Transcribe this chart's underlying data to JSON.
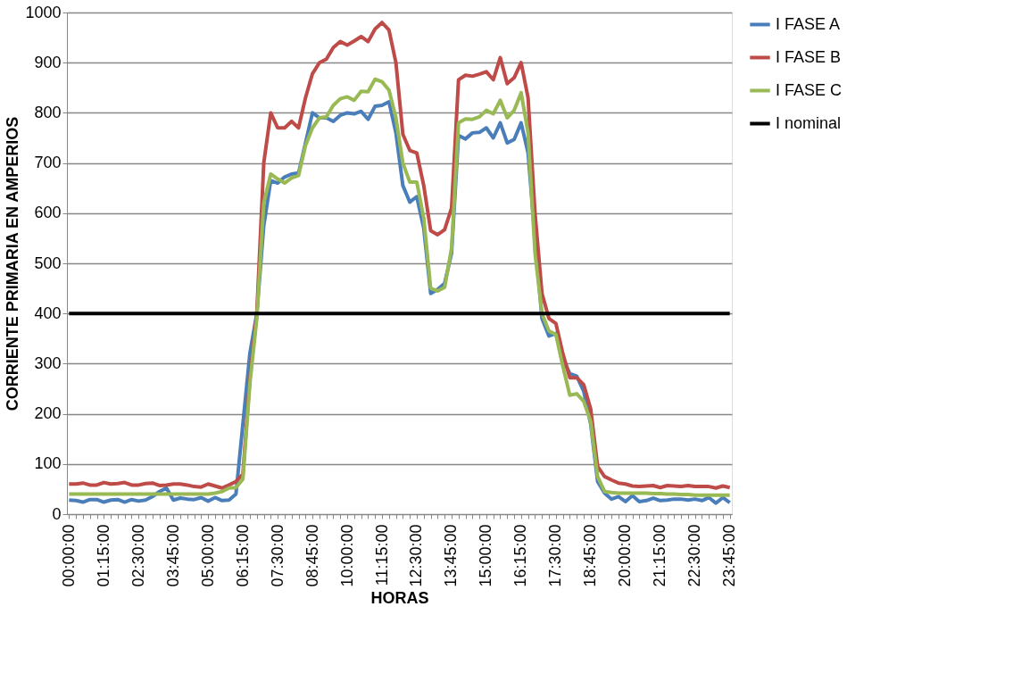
{
  "chart_data": {
    "type": "line",
    "xlabel": "HORAS",
    "ylabel": "CORRIENTE PRIMARIA EN AMPERIOS",
    "categories": [
      "00:00:00",
      null,
      null,
      null,
      null,
      "01:15:00",
      null,
      null,
      null,
      null,
      "02:30:00",
      null,
      null,
      null,
      null,
      "03:45:00",
      null,
      null,
      null,
      null,
      "05:00:00",
      null,
      null,
      null,
      null,
      "06:15:00",
      null,
      null,
      null,
      null,
      "07:30:00",
      null,
      null,
      null,
      null,
      "08:45:00",
      null,
      null,
      null,
      null,
      "10:00:00",
      null,
      null,
      null,
      null,
      "11:15:00",
      null,
      null,
      null,
      null,
      "12:30:00",
      null,
      null,
      null,
      null,
      "13:45:00",
      null,
      null,
      null,
      null,
      "15:00:00",
      null,
      null,
      null,
      null,
      "16:15:00",
      null,
      null,
      null,
      null,
      "17:30:00",
      null,
      null,
      null,
      null,
      "18:45:00",
      null,
      null,
      null,
      null,
      "20:00:00",
      null,
      null,
      null,
      null,
      "21:15:00",
      null,
      null,
      null,
      null,
      "22:30:00",
      null,
      null,
      null,
      null,
      "23:45:00"
    ],
    "series": [
      {
        "name": "I FASE A",
        "color": "#4a7ebb",
        "values": [
          28,
          27,
          24,
          29,
          29,
          24,
          28,
          29,
          24,
          29,
          26,
          28,
          35,
          45,
          52,
          28,
          32,
          30,
          29,
          33,
          26,
          33,
          27,
          28,
          40,
          180,
          320,
          400,
          575,
          665,
          660,
          672,
          678,
          680,
          740,
          800,
          790,
          790,
          783,
          795,
          800,
          798,
          803,
          787,
          813,
          815,
          822,
          760,
          655,
          622,
          633,
          570,
          440,
          448,
          460,
          520,
          755,
          748,
          760,
          761,
          770,
          750,
          780,
          740,
          747,
          780,
          720,
          550,
          390,
          355,
          360,
          310,
          280,
          275,
          245,
          180,
          65,
          42,
          30,
          35,
          25,
          37,
          25,
          27,
          32,
          27,
          28,
          30,
          30,
          28,
          30,
          27,
          33,
          22,
          33,
          23
        ]
      },
      {
        "name": "I FASE B",
        "color": "#be4b48",
        "values": [
          60,
          60,
          62,
          58,
          58,
          63,
          60,
          61,
          63,
          58,
          58,
          61,
          62,
          57,
          58,
          60,
          60,
          58,
          55,
          54,
          60,
          56,
          52,
          58,
          65,
          80,
          270,
          400,
          700,
          800,
          770,
          770,
          783,
          770,
          830,
          878,
          900,
          907,
          930,
          942,
          935,
          943,
          952,
          942,
          967,
          980,
          965,
          900,
          757,
          725,
          720,
          655,
          565,
          557,
          567,
          610,
          866,
          875,
          873,
          877,
          882,
          866,
          910,
          858,
          870,
          900,
          830,
          600,
          440,
          390,
          380,
          320,
          272,
          272,
          258,
          210,
          95,
          75,
          68,
          62,
          60,
          56,
          55,
          56,
          57,
          53,
          57,
          56,
          55,
          57,
          55,
          55,
          55,
          52,
          56,
          53
        ]
      },
      {
        "name": "I FASE C",
        "color": "#98b954",
        "values": [
          40,
          40,
          40,
          40,
          40,
          40,
          40,
          40,
          40,
          40,
          40,
          40,
          40,
          40,
          40,
          40,
          40,
          40,
          40,
          40,
          40,
          42,
          45,
          52,
          53,
          70,
          260,
          390,
          620,
          678,
          668,
          660,
          670,
          675,
          735,
          770,
          790,
          792,
          815,
          828,
          832,
          825,
          843,
          842,
          867,
          862,
          845,
          790,
          700,
          662,
          662,
          590,
          450,
          445,
          452,
          530,
          780,
          788,
          787,
          792,
          805,
          798,
          825,
          790,
          805,
          840,
          760,
          520,
          400,
          365,
          358,
          295,
          237,
          240,
          225,
          185,
          75,
          45,
          43,
          42,
          42,
          42,
          42,
          42,
          41,
          41,
          40,
          40,
          39,
          39,
          38,
          38,
          38,
          38,
          38,
          38
        ]
      },
      {
        "name": "I nominal",
        "color": "#000000",
        "values": [
          400,
          400,
          400,
          400,
          400,
          400,
          400,
          400,
          400,
          400,
          400,
          400,
          400,
          400,
          400,
          400,
          400,
          400,
          400,
          400,
          400,
          400,
          400,
          400,
          400,
          400,
          400,
          400,
          400,
          400,
          400,
          400,
          400,
          400,
          400,
          400,
          400,
          400,
          400,
          400,
          400,
          400,
          400,
          400,
          400,
          400,
          400,
          400,
          400,
          400,
          400,
          400,
          400,
          400,
          400,
          400,
          400,
          400,
          400,
          400,
          400,
          400,
          400,
          400,
          400,
          400,
          400,
          400,
          400,
          400,
          400,
          400,
          400,
          400,
          400,
          400,
          400,
          400,
          400,
          400,
          400,
          400,
          400,
          400,
          400,
          400,
          400,
          400,
          400,
          400,
          400,
          400,
          400,
          400,
          400,
          400
        ]
      }
    ],
    "ylim": [
      0,
      1000
    ],
    "yticks": [
      0,
      100,
      200,
      300,
      400,
      500,
      600,
      700,
      800,
      900,
      1000
    ],
    "grid": "y",
    "legend": "right",
    "marker": "none",
    "line_style": "solid"
  }
}
